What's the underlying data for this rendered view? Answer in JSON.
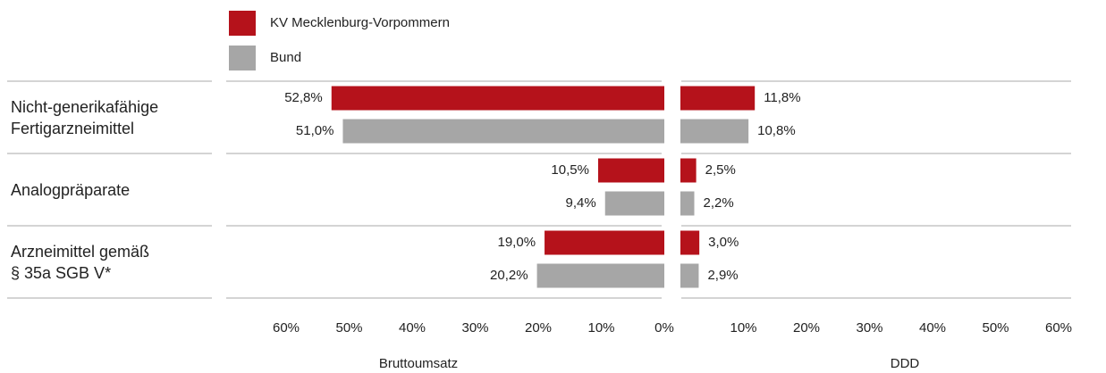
{
  "chart_data": {
    "type": "bar",
    "orientation": "horizontal",
    "categories": [
      "Nicht-generikafähige\nFertigarzneimittel",
      "Analogpräparate",
      "Arzneimittel gemäß\n§ 35a SGB V*"
    ],
    "series": [
      {
        "name": "KV Mecklenburg-Vorpommern",
        "color": "#b5121b"
      },
      {
        "name": "Bund",
        "color": "#a6a6a6"
      }
    ],
    "panels": [
      {
        "xlabel": "Bruttoumsatz",
        "xlim": [
          60,
          0
        ],
        "xticks": [
          {
            "value": 60,
            "label": "60%"
          },
          {
            "value": 50,
            "label": "50%"
          },
          {
            "value": 40,
            "label": "40%"
          },
          {
            "value": 30,
            "label": "30%"
          },
          {
            "value": 20,
            "label": "20%"
          },
          {
            "value": 10,
            "label": "10%"
          },
          {
            "value": 0,
            "label": "0%"
          }
        ],
        "series": [
          {
            "values": [
              52.8,
              10.5,
              19.0
            ],
            "value_labels": [
              "52,8%",
              "10,5%",
              "19,0%"
            ]
          },
          {
            "values": [
              51.0,
              9.4,
              20.2
            ],
            "value_labels": [
              "51,0%",
              "9,4%",
              "20,2%"
            ]
          }
        ]
      },
      {
        "xlabel": "DDD",
        "xlim": [
          0,
          60
        ],
        "xticks": [
          {
            "value": 10,
            "label": "10%"
          },
          {
            "value": 20,
            "label": "20%"
          },
          {
            "value": 30,
            "label": "30%"
          },
          {
            "value": 40,
            "label": "40%"
          },
          {
            "value": 50,
            "label": "50%"
          },
          {
            "value": 60,
            "label": "60%"
          }
        ],
        "series": [
          {
            "values": [
              11.8,
              2.5,
              3.0
            ],
            "value_labels": [
              "11,8%",
              "2,5%",
              "3,0%"
            ]
          },
          {
            "values": [
              10.8,
              2.2,
              2.9
            ],
            "value_labels": [
              "10,8%",
              "2,2%",
              "2,9%"
            ]
          }
        ]
      }
    ]
  }
}
